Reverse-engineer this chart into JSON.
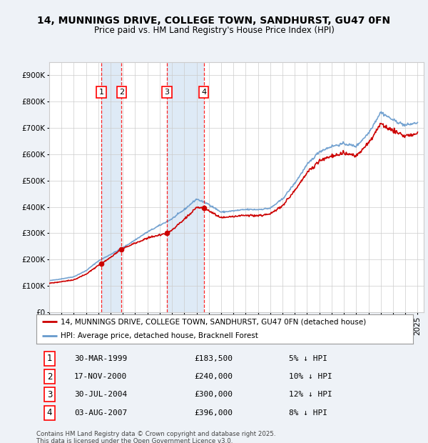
{
  "title": "14, MUNNINGS DRIVE, COLLEGE TOWN, SANDHURST, GU47 0FN",
  "subtitle": "Price paid vs. HM Land Registry's House Price Index (HPI)",
  "transactions": [
    {
      "num": 1,
      "date": "30-MAR-1999",
      "price": 183500,
      "year": 1999.24,
      "hpi_note": "5% ↓ HPI"
    },
    {
      "num": 2,
      "date": "17-NOV-2000",
      "price": 240000,
      "year": 2000.88,
      "hpi_note": "10% ↓ HPI"
    },
    {
      "num": 3,
      "date": "30-JUL-2004",
      "price": 300000,
      "year": 2004.58,
      "hpi_note": "12% ↓ HPI"
    },
    {
      "num": 4,
      "date": "03-AUG-2007",
      "price": 396000,
      "year": 2007.59,
      "hpi_note": "8% ↓ HPI"
    }
  ],
  "hpi_label": "HPI: Average price, detached house, Bracknell Forest",
  "price_label": "14, MUNNINGS DRIVE, COLLEGE TOWN, SANDHURST, GU47 0FN (detached house)",
  "footer": "Contains HM Land Registry data © Crown copyright and database right 2025.\nThis data is licensed under the Open Government Licence v3.0.",
  "ylim": [
    0,
    950000
  ],
  "yticks": [
    0,
    100000,
    200000,
    300000,
    400000,
    500000,
    600000,
    700000,
    800000,
    900000
  ],
  "hpi_color": "#6699cc",
  "price_color": "#cc0000",
  "bg_color": "#eef2f7",
  "plot_bg": "#ffffff",
  "shade_color": "#c8ddf0",
  "grid_color": "#cccccc"
}
